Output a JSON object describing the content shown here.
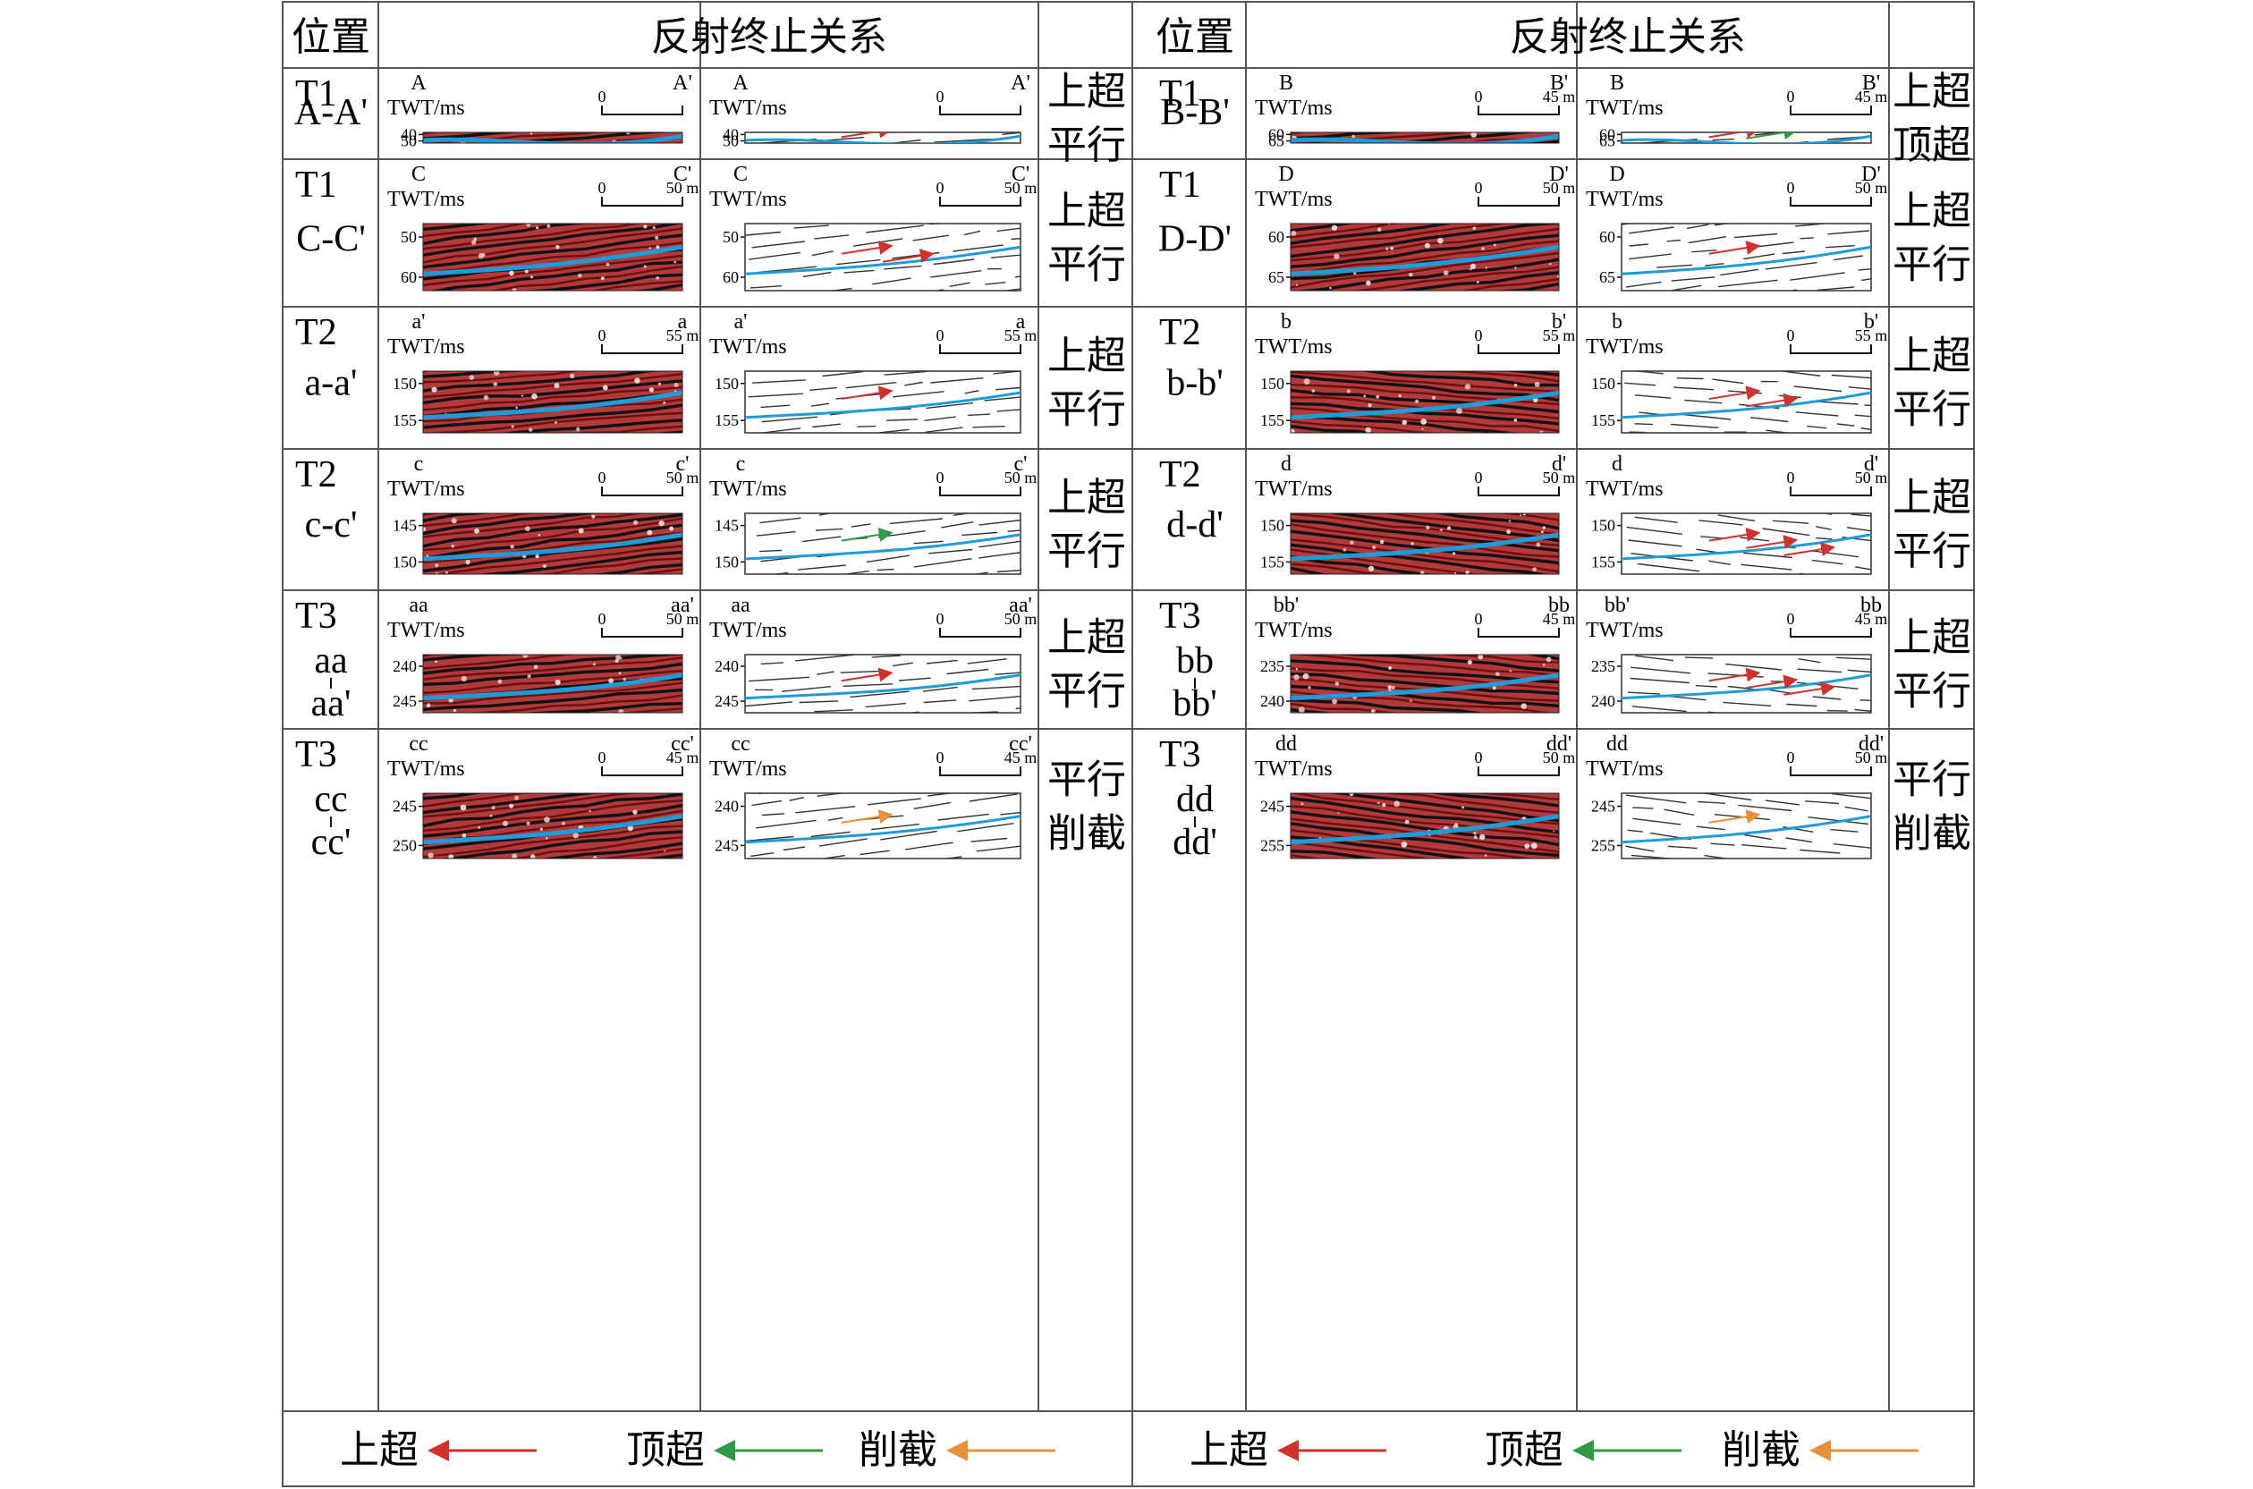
{
  "header": {
    "position_label": "位置",
    "relation_label": "反射终止关系"
  },
  "axis_label": "TWT/ms",
  "legend": [
    {
      "label": "上超",
      "color": "#d0312d"
    },
    {
      "label": "顶超",
      "color": "#2e9a44"
    },
    {
      "label": "削截",
      "color": "#e8913a"
    }
  ],
  "colors": {
    "horizon": "#1f9bd7",
    "seismic_red": "#8c1b1b",
    "seismic_black": "#141414",
    "grid_line": "#555555"
  },
  "rows": [
    {
      "left": {
        "layer": "T1",
        "section": "A-A'",
        "start": "A",
        "end": "A'",
        "scale_zero": "0",
        "scale_end": "",
        "ticks": [
          "40",
          "50"
        ],
        "relation": [
          "上超",
          "平行"
        ],
        "arrow_colors": [
          "#d0312d"
        ]
      },
      "right": {
        "layer": "T1",
        "section": "B-B'",
        "start": "B",
        "end": "B'",
        "scale_zero": "0",
        "scale_end": "45 m",
        "ticks": [
          "60",
          "65"
        ],
        "relation": [
          "上超",
          "顶超"
        ],
        "arrow_colors": [
          "#d0312d",
          "#2e9a44"
        ]
      }
    },
    {
      "left": {
        "layer": "T1",
        "section": "C-C'",
        "start": "C",
        "end": "C'",
        "scale_zero": "0",
        "scale_end": "50 m",
        "ticks": [
          "50",
          "60"
        ],
        "relation": [
          "上超",
          "平行"
        ],
        "arrow_colors": [
          "#d0312d",
          "#d0312d"
        ]
      },
      "right": {
        "layer": "T1",
        "section": "D-D'",
        "start": "D",
        "end": "D'",
        "scale_zero": "0",
        "scale_end": "50 m",
        "ticks": [
          "60",
          "65"
        ],
        "relation": [
          "上超",
          "平行"
        ],
        "arrow_colors": [
          "#d0312d"
        ]
      }
    },
    {
      "left": {
        "layer": "T2",
        "section": "a-a'",
        "start": "a'",
        "end": "a",
        "scale_zero": "0",
        "scale_end": "55 m",
        "ticks": [
          "150",
          "155"
        ],
        "relation": [
          "上超",
          "平行"
        ],
        "arrow_colors": [
          "#d0312d"
        ]
      },
      "right": {
        "layer": "T2",
        "section": "b-b'",
        "start": "b",
        "end": "b'",
        "scale_zero": "0",
        "scale_end": "55 m",
        "ticks": [
          "150",
          "155"
        ],
        "relation": [
          "上超",
          "平行"
        ],
        "arrow_colors": [
          "#d0312d",
          "#d0312d"
        ]
      }
    },
    {
      "left": {
        "layer": "T2",
        "section": "c-c'",
        "start": "c",
        "end": "c'",
        "scale_zero": "0",
        "scale_end": "50 m",
        "ticks": [
          "145",
          "150"
        ],
        "relation": [
          "上超",
          "平行"
        ],
        "arrow_colors": [
          "#2e9a44"
        ]
      },
      "right": {
        "layer": "T2",
        "section": "d-d'",
        "start": "d",
        "end": "d'",
        "scale_zero": "0",
        "scale_end": "50 m",
        "ticks": [
          "150",
          "155"
        ],
        "relation": [
          "上超",
          "平行"
        ],
        "arrow_colors": [
          "#d0312d",
          "#d0312d",
          "#d0312d"
        ]
      }
    },
    {
      "left": {
        "layer": "T3",
        "section": [
          "aa",
          "aa'"
        ],
        "start": "aa",
        "end": "aa'",
        "scale_zero": "0",
        "scale_end": "50 m",
        "ticks": [
          "240",
          "245"
        ],
        "relation": [
          "上超",
          "平行"
        ],
        "arrow_colors": [
          "#d0312d"
        ]
      },
      "right": {
        "layer": "T3",
        "section": [
          "bb",
          "bb'"
        ],
        "start": "bb'",
        "end": "bb",
        "scale_zero": "0",
        "scale_end": "45 m",
        "ticks": [
          "235",
          "240"
        ],
        "relation": [
          "上超",
          "平行"
        ],
        "arrow_colors": [
          "#d0312d",
          "#d0312d",
          "#d0312d"
        ]
      }
    },
    {
      "left": {
        "layer": "T3",
        "section": [
          "cc",
          "cc'"
        ],
        "start": "cc",
        "end": "cc'",
        "scale_zero": "0",
        "scale_end": "45 m",
        "ticks": [
          "245",
          "250"
        ],
        "ticks_right": [
          "240",
          "245"
        ],
        "relation": [
          "平行",
          "削截"
        ],
        "arrow_colors": [
          "#e8913a"
        ]
      },
      "right": {
        "layer": "T3",
        "section": [
          "dd",
          "dd'"
        ],
        "start": "dd",
        "end": "dd'",
        "scale_zero": "0",
        "scale_end": "50 m",
        "ticks": [
          "245",
          "255"
        ],
        "relation": [
          "平行",
          "削截"
        ],
        "arrow_colors": [
          "#e8913a"
        ]
      }
    }
  ]
}
